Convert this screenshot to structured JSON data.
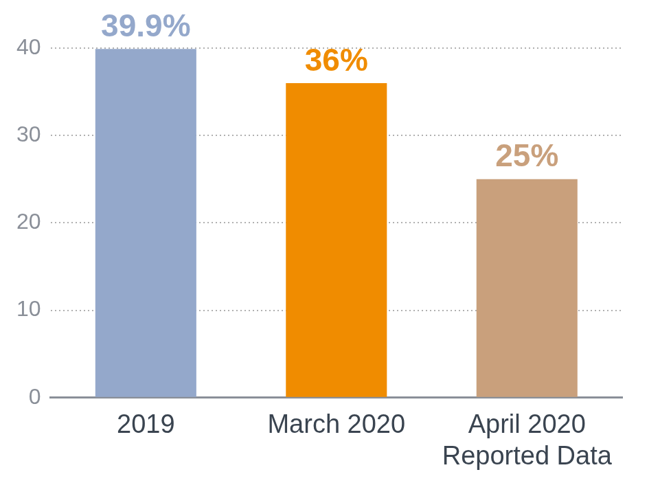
{
  "chart_data": {
    "type": "bar",
    "categories": [
      "2019",
      "March 2020",
      "April 2020\nReported Data"
    ],
    "values": [
      39.9,
      36,
      25
    ],
    "value_labels": [
      "39.9%",
      "36%",
      "25%"
    ],
    "data_labels": true,
    "colors": [
      "#94a8cb",
      "#f08c00",
      "#c9a07c"
    ],
    "ylim": [
      0,
      40
    ],
    "yticks": [
      0,
      10,
      20,
      30,
      40
    ],
    "grid": true
  }
}
